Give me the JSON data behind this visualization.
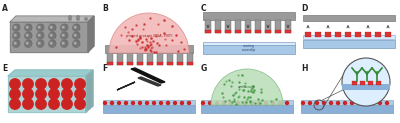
{
  "figsize": [
    4.0,
    1.23
  ],
  "dpi": 100,
  "bg_color": "#ffffff",
  "panels": [
    "A",
    "B",
    "C",
    "D",
    "E",
    "F",
    "G",
    "H"
  ],
  "label_color": "#222222",
  "gray_stamp": "#9a9a9a",
  "gray_stamp_dark": "#787878",
  "gray_stamp_light": "#c0c0c0",
  "gray_stamp_top": "#b8b8b8",
  "pillar_face": "#888888",
  "pillar_edge": "#666666",
  "pillar_red_tip": "#dd3333",
  "protein_dome_fill": "#f2b8b8",
  "protein_dome_edge": "#e09090",
  "protein_dot": "#cc3333",
  "protein_label": "#992222",
  "coverslip_blue": "#a8c8e8",
  "coverslip_light": "#c8e0f8",
  "coating_strip": "#d8ecfc",
  "arrow_col": "#444444",
  "slide_teal": "#b0d4d4",
  "slide_teal_dark": "#88bbbb",
  "slide_red": "#cc2222",
  "green_ab": "#88bb88",
  "green_ab_fill": "#b8ddb8",
  "green_dot": "#449944",
  "ab_label": "#336633",
  "zoom_fill": "#ddeeff",
  "zoom_edge": "#555555"
}
